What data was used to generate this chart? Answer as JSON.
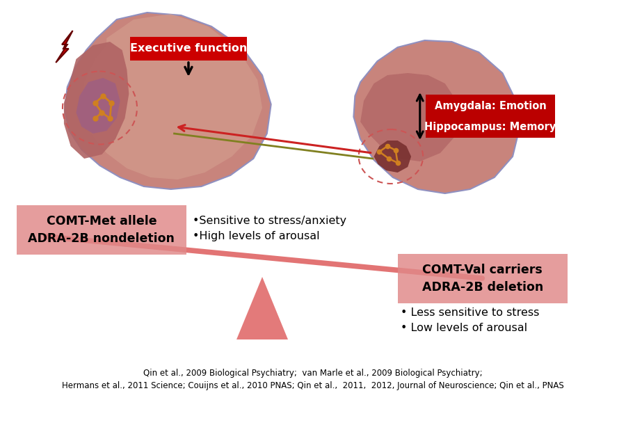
{
  "bg_color": "#ffffff",
  "exec_func_label": "Executive function",
  "exec_func_box_color": "#cc0000",
  "exec_func_text_color": "#ffffff",
  "amygdala_label": "Amygdala: Emotion",
  "hippocampus_label": "Hippocampus: Memory",
  "amyg_hipp_box_color": "#bb0000",
  "amyg_hipp_text_color": "#ffffff",
  "left_allele_line1": "COMT-Met allele",
  "left_allele_line2": "ADRA-2B nondeletion",
  "left_box_color": "#e08888",
  "left_bullet1": "•Sensitive to stress/anxiety",
  "left_bullet2": "•High levels of arousal",
  "right_allele_line1": "COMT-Val carriers",
  "right_allele_line2": "ADRA-2B deletion",
  "right_box_color": "#e08888",
  "right_bullet1": "• Less sensitive to stress",
  "right_bullet2": "• Low levels of arousal",
  "citation1": "Qin et al., 2009 Biological Psychiatry;  van Marle et al., 2009 Biological Psychiatry;",
  "citation2": "Hermans et al., 2011 Science; Couijns et al., 2010 PNAS; Qin et al.,  2011,  2012, Journal of Neuroscience; Qin et al., PNAS",
  "seesaw_color": "#e06868",
  "brain_outer": "#c8847c",
  "brain_mid": "#b06464",
  "brain_inner": "#904848",
  "brain_deep": "#783030",
  "brain_top": "#d4a090",
  "neural_color": "#d08020",
  "dashed_color": "#cc5555",
  "lightning_color": "#cc0000",
  "red_line_color": "#cc2222",
  "olive_line_color": "#808020",
  "arrow_color": "#000000"
}
